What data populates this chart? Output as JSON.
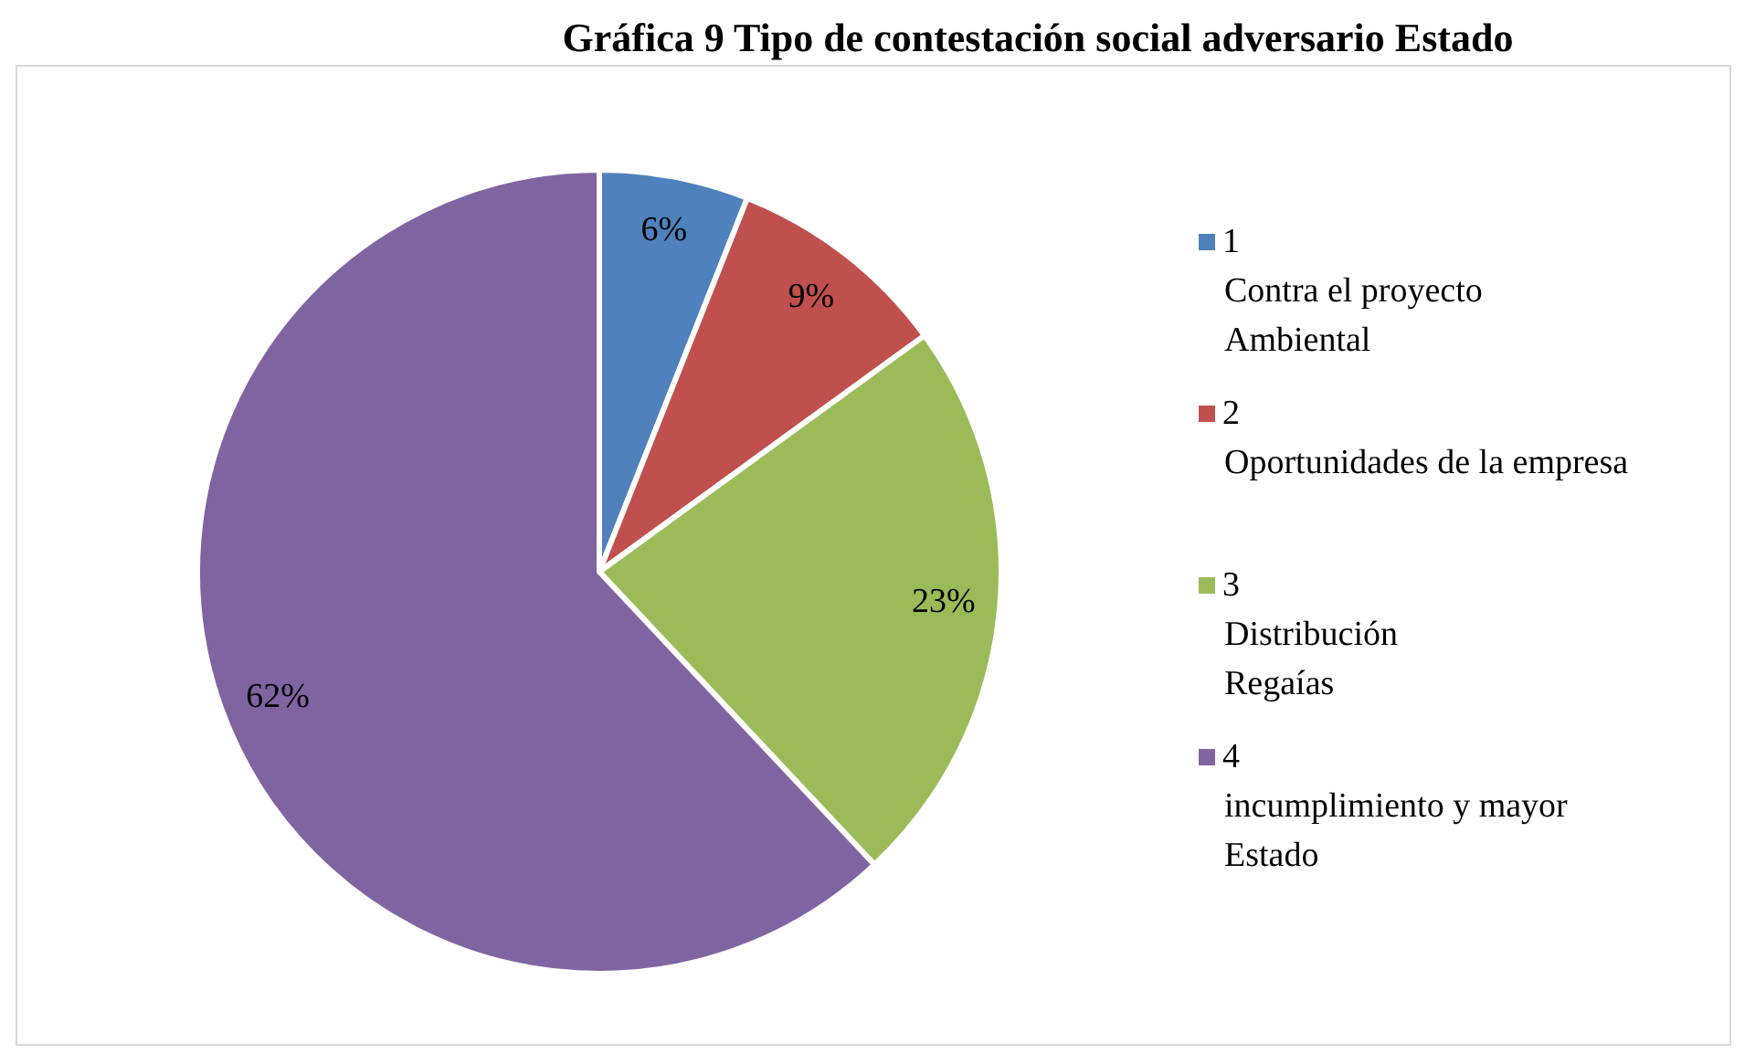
{
  "chart_data": {
    "type": "pie",
    "title": "Gráfica 9 Tipo de contestación social adversario Estado",
    "categories": [
      "1\nContra el proyecto\nAmbiental",
      "2\nOportunidades de la empresa",
      "3\nDistribución\nRegaías",
      "4\nincumplimiento y mayor\nEstado"
    ],
    "values": [
      6,
      9,
      23,
      62
    ],
    "colors": [
      "#4f81bd",
      "#c0504d",
      "#9bbb59",
      "#8064a2"
    ],
    "value_labels": [
      "6%",
      "9%",
      "23%",
      "62%"
    ],
    "legend": "right"
  }
}
